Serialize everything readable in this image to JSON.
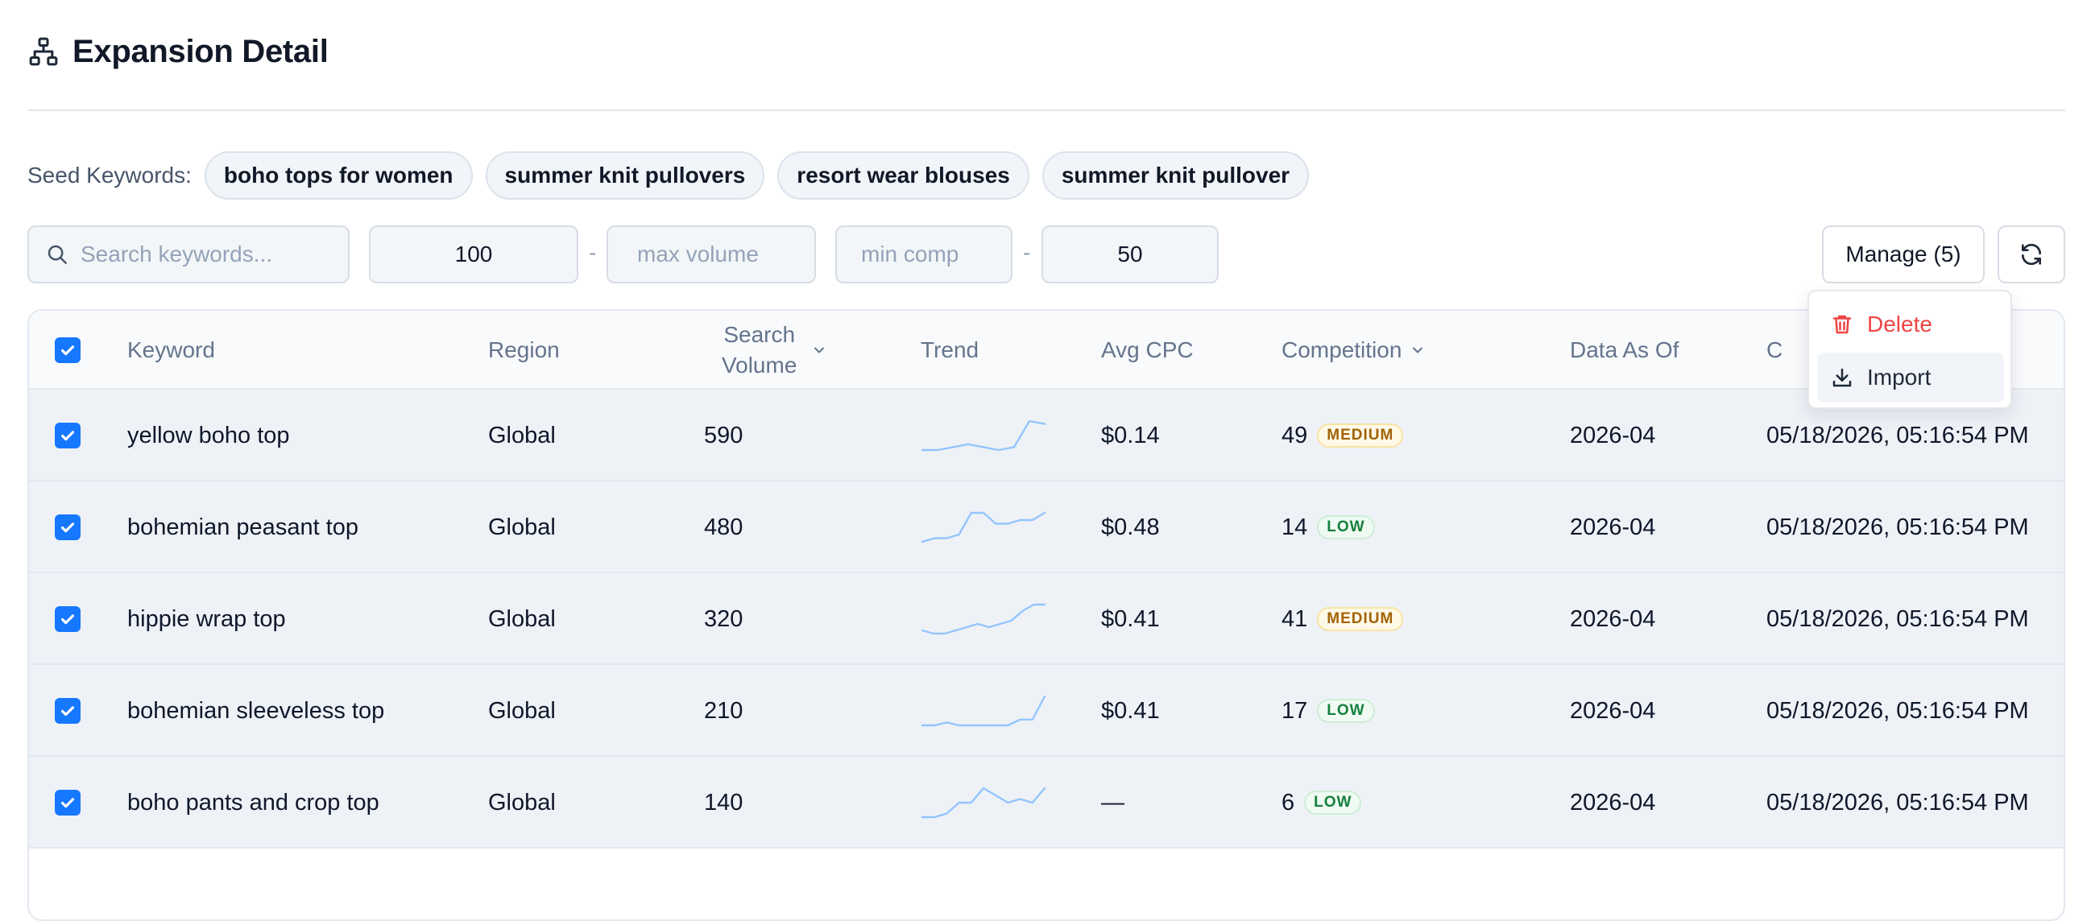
{
  "header": {
    "title": "Expansion Detail",
    "icon": "sitemap-icon"
  },
  "seeds": {
    "label": "Seed Keywords:",
    "chips": [
      "boho tops for women",
      "summer knit pullovers",
      "resort wear blouses",
      "summer knit pullover"
    ]
  },
  "filters": {
    "search_placeholder": "Search keywords...",
    "min_volume": "100",
    "max_volume_placeholder": "max volume",
    "min_comp_placeholder": "min comp",
    "max_comp": "50",
    "dash": "-",
    "manage_label": "Manage (5)"
  },
  "menu": {
    "delete_label": "Delete",
    "import_label": "Import"
  },
  "table": {
    "headers": {
      "keyword": "Keyword",
      "region": "Region",
      "volume_line1": "Search",
      "volume_line2": "Volume",
      "trend": "Trend",
      "cpc": "Avg CPC",
      "competition": "Competition",
      "data_as_of": "Data As Of",
      "created": "C"
    },
    "rows": [
      {
        "keyword": "yellow boho top",
        "region": "Global",
        "volume": "590",
        "cpc": "$0.14",
        "comp": "49",
        "level": "MEDIUM",
        "data_as_of": "2026-04",
        "created": "05/18/2026, 05:16:54 PM",
        "trend": [
          2,
          2,
          3,
          4,
          3,
          2,
          3,
          12,
          11
        ]
      },
      {
        "keyword": "bohemian peasant top",
        "region": "Global",
        "volume": "480",
        "cpc": "$0.48",
        "comp": "14",
        "level": "LOW",
        "data_as_of": "2026-04",
        "created": "05/18/2026, 05:16:54 PM",
        "trend": [
          2,
          3,
          3,
          4,
          10,
          10,
          7,
          7,
          8,
          8,
          10
        ]
      },
      {
        "keyword": "hippie wrap top",
        "region": "Global",
        "volume": "320",
        "cpc": "$0.41",
        "comp": "41",
        "level": "MEDIUM",
        "data_as_of": "2026-04",
        "created": "05/18/2026, 05:16:54 PM",
        "trend": [
          3,
          2,
          2,
          3,
          4,
          5,
          4,
          5,
          6,
          9,
          11,
          11
        ]
      },
      {
        "keyword": "bohemian sleeveless top",
        "region": "Global",
        "volume": "210",
        "cpc": "$0.41",
        "comp": "17",
        "level": "LOW",
        "data_as_of": "2026-04",
        "created": "05/18/2026, 05:16:54 PM",
        "trend": [
          2,
          2,
          3,
          2,
          2,
          2,
          2,
          2,
          4,
          4,
          12
        ]
      },
      {
        "keyword": "boho pants and crop top",
        "region": "Global",
        "volume": "140",
        "cpc": "—",
        "comp": "6",
        "level": "LOW",
        "data_as_of": "2026-04",
        "created": "05/18/2026, 05:16:54 PM",
        "trend": [
          1,
          1,
          2,
          5,
          5,
          9,
          7,
          5,
          6,
          5,
          9
        ]
      }
    ]
  },
  "colors": {
    "accent": "#1677ff",
    "sparkline": "#93c5fd",
    "danger": "#ef4444"
  }
}
